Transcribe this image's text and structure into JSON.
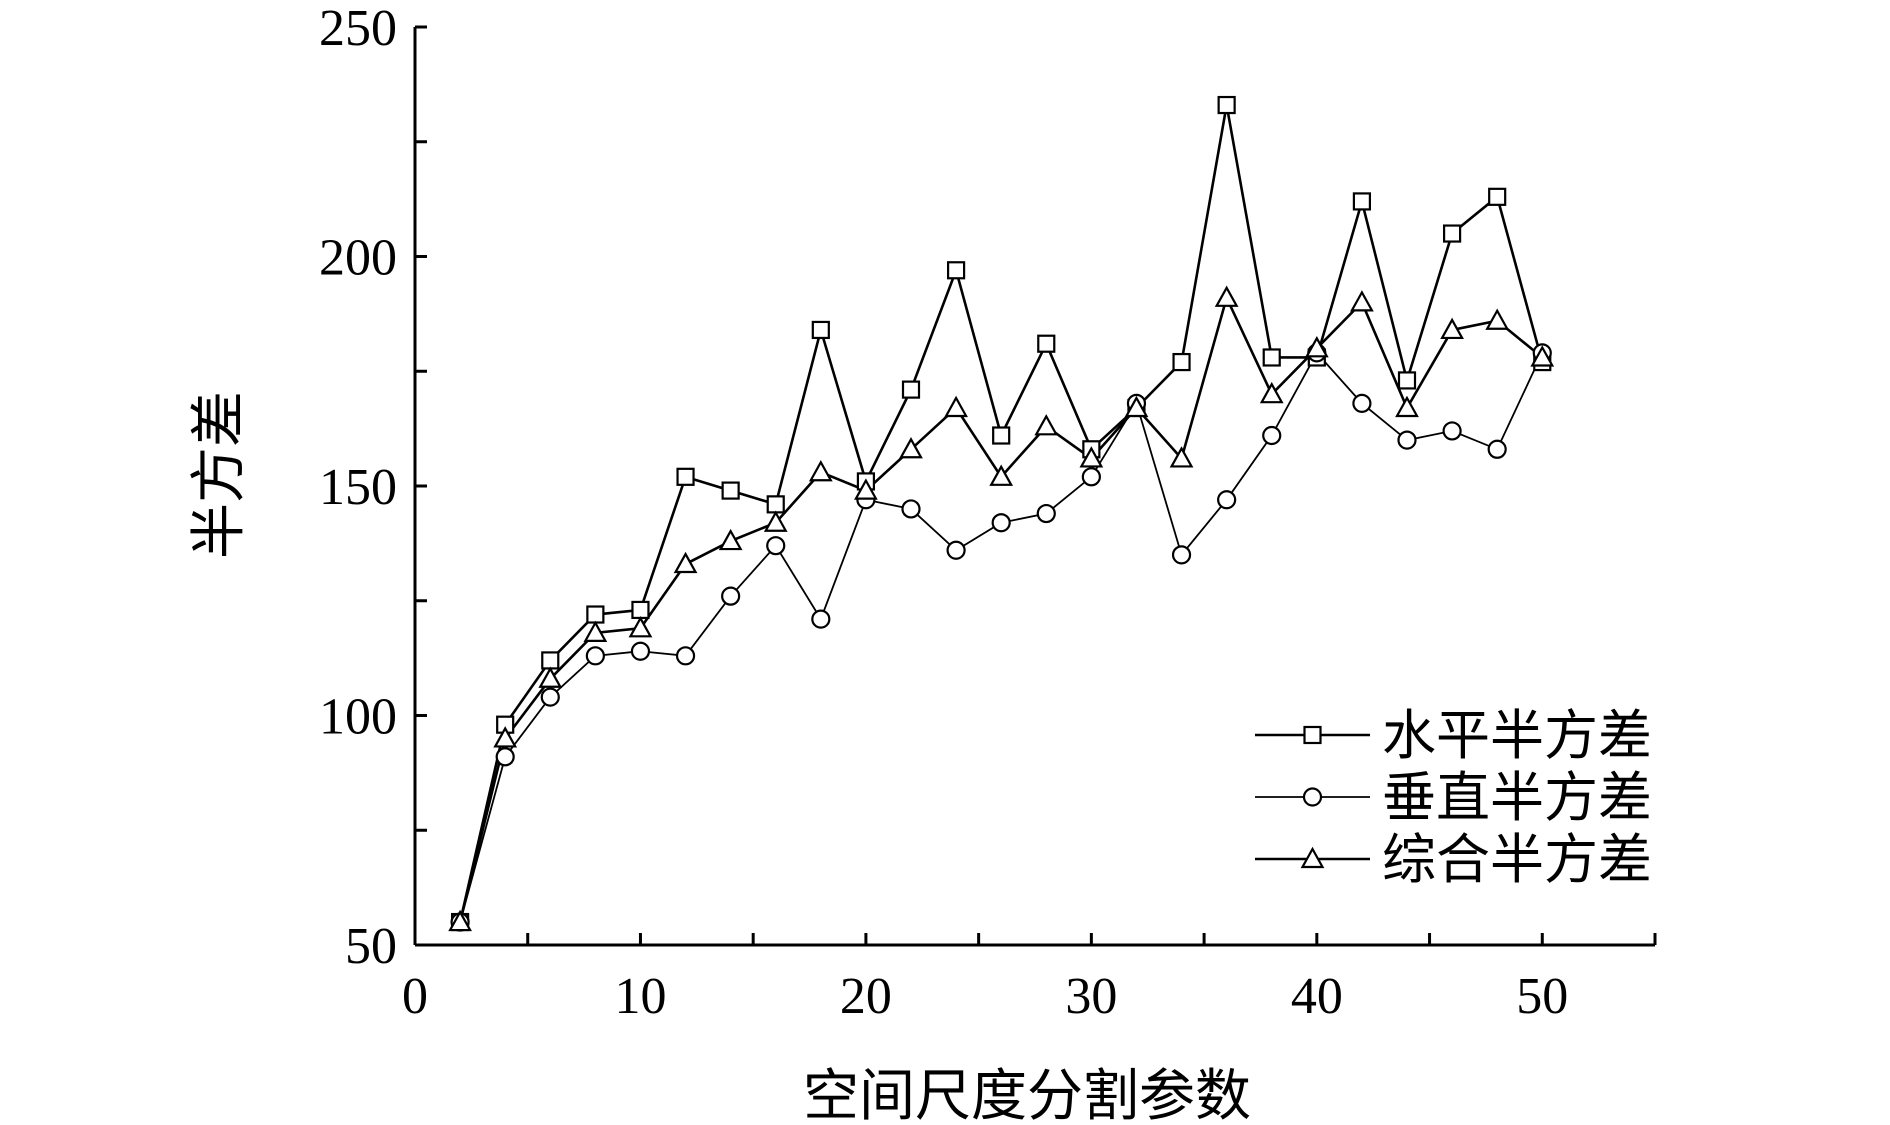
{
  "chart_data": {
    "type": "line",
    "xlabel": "空间尺度分割参数",
    "ylabel": "半方差",
    "xlim": [
      0,
      55
    ],
    "ylim": [
      50,
      250
    ],
    "x_ticks": [
      "0",
      "10",
      "20",
      "30",
      "40",
      "50"
    ],
    "y_ticks": [
      "50",
      "100",
      "150",
      "200",
      "250"
    ],
    "grid": false,
    "legend_position": "bottom-right",
    "x": [
      2,
      4,
      6,
      8,
      10,
      12,
      14,
      16,
      18,
      20,
      22,
      24,
      26,
      28,
      30,
      32,
      34,
      36,
      38,
      40,
      42,
      44,
      46,
      48,
      50
    ],
    "series": [
      {
        "name": "水平半方差",
        "marker": "square",
        "values": [
          55,
          98,
          112,
          122,
          123,
          152,
          149,
          146,
          184,
          151,
          171,
          197,
          161,
          181,
          158,
          167,
          177,
          233,
          178,
          178,
          212,
          173,
          205,
          213,
          177
        ]
      },
      {
        "name": "垂直半方差",
        "marker": "circle",
        "values": [
          55,
          91,
          104,
          113,
          114,
          113,
          126,
          137,
          121,
          147,
          145,
          136,
          142,
          144,
          152,
          168,
          135,
          147,
          161,
          179,
          168,
          160,
          162,
          158,
          179
        ]
      },
      {
        "name": "综合半方差",
        "marker": "triangle",
        "values": [
          55,
          95,
          108,
          118,
          119,
          133,
          138,
          142,
          153,
          149,
          158,
          167,
          152,
          163,
          156,
          167,
          156,
          191,
          170,
          180,
          190,
          167,
          184,
          186,
          178
        ]
      }
    ]
  }
}
